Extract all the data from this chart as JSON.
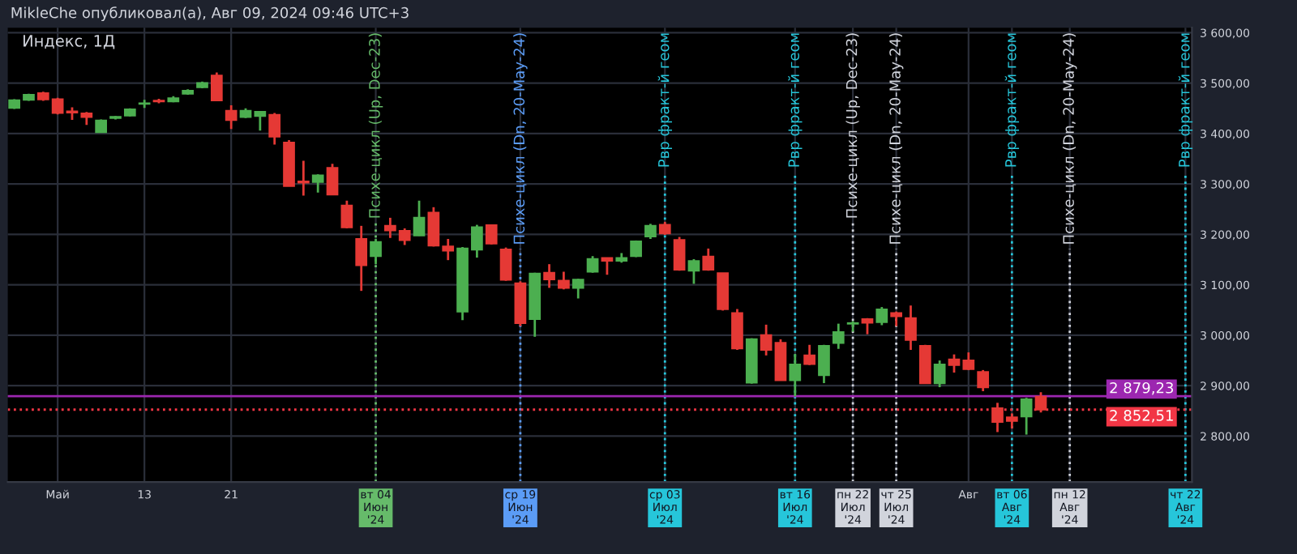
{
  "chart_data": {
    "type": "candlestick",
    "title": "Индекс, 1Д",
    "annotations": [
      "MikleChe опубликовал(а), Авг 09, 2024 09:46 UTC+3"
    ],
    "categories": [
      null,
      null,
      null,
      "Май",
      null,
      null,
      null,
      null,
      null,
      "13",
      null,
      null,
      null,
      null,
      null,
      "21",
      null,
      null,
      null,
      null,
      null,
      null,
      null,
      null,
      null,
      "вт 04 Июн '24",
      null,
      null,
      null,
      null,
      null,
      null,
      null,
      null,
      null,
      "ср 19 Июн '24",
      null,
      null,
      null,
      null,
      null,
      null,
      null,
      null,
      null,
      "ср 03 Июл '24",
      null,
      null,
      null,
      null,
      null,
      null,
      null,
      null,
      "вт 16 Июл '24",
      null,
      null,
      null,
      "пн 22 Июл '24",
      null,
      null,
      "чт 25 Июл '24",
      null,
      null,
      null,
      null,
      "Авг",
      null,
      null,
      "вт 06 Авг '24",
      null,
      null,
      null,
      "пн 12 Авг '24",
      null,
      null,
      null,
      null,
      null,
      null,
      null,
      "чт 22 Авг '24"
    ],
    "ohlc": [
      [
        3451,
        3468,
        3449,
        3466
      ],
      [
        3467,
        3479,
        3465,
        3477
      ],
      [
        3480,
        3483,
        3465,
        3468
      ],
      [
        3468,
        3471,
        3438,
        3441
      ],
      [
        3444,
        3452,
        3427,
        3442
      ],
      [
        3440,
        3443,
        3417,
        3433
      ],
      [
        3403,
        3428,
        3402,
        3426
      ],
      [
        3431,
        3435,
        3428,
        3433
      ],
      [
        3436,
        3450,
        3434,
        3448
      ],
      [
        3459,
        3467,
        3451,
        3460
      ],
      [
        3465,
        3469,
        3460,
        3464
      ],
      [
        3464,
        3474,
        3462,
        3470
      ],
      [
        3479,
        3488,
        3477,
        3485
      ],
      [
        3492,
        3503,
        3490,
        3500
      ],
      [
        3515,
        3521,
        3466,
        3466
      ],
      [
        3445,
        3456,
        3409,
        3427
      ],
      [
        3433,
        3450,
        3431,
        3445
      ],
      [
        3435,
        3445,
        3406,
        3443
      ],
      [
        3437,
        3441,
        3378,
        3394
      ],
      [
        3382,
        3387,
        3296,
        3296
      ],
      [
        3305,
        3346,
        3277,
        3303
      ],
      [
        3304,
        3319,
        3283,
        3317
      ],
      [
        3332,
        3340,
        3279,
        3279
      ],
      [
        3257,
        3267,
        3212,
        3214
      ],
      [
        3191,
        3217,
        3088,
        3139
      ],
      [
        3157,
        3191,
        3141,
        3185
      ],
      [
        3217,
        3233,
        3193,
        3208
      ],
      [
        3207,
        3212,
        3179,
        3189
      ],
      [
        3198,
        3267,
        3197,
        3233
      ],
      [
        3243,
        3254,
        3176,
        3178
      ],
      [
        3176,
        3191,
        3149,
        3168
      ],
      [
        3047,
        3175,
        3030,
        3172
      ],
      [
        3170,
        3219,
        3154,
        3214
      ],
      [
        3218,
        3219,
        3180,
        3182
      ],
      [
        3170,
        3174,
        3108,
        3110
      ],
      [
        3103,
        3107,
        3018,
        3024
      ],
      [
        3032,
        3124,
        2997,
        3122
      ],
      [
        3124,
        3141,
        3094,
        3111
      ],
      [
        3108,
        3126,
        3091,
        3094
      ],
      [
        3094,
        3112,
        3073,
        3110
      ],
      [
        3126,
        3157,
        3124,
        3151
      ],
      [
        3153,
        3154,
        3120,
        3148
      ],
      [
        3148,
        3163,
        3144,
        3153
      ],
      [
        3157,
        3188,
        3155,
        3186
      ],
      [
        3196,
        3221,
        3191,
        3217
      ],
      [
        3219,
        3225,
        3199,
        3202
      ],
      [
        3189,
        3195,
        3128,
        3130
      ],
      [
        3128,
        3151,
        3102,
        3147
      ],
      [
        3156,
        3172,
        3128,
        3130
      ],
      [
        3123,
        3123,
        3049,
        3052
      ],
      [
        3044,
        3052,
        2971,
        2974
      ],
      [
        2906,
        2994,
        2904,
        2992
      ],
      [
        3000,
        3021,
        2960,
        2971
      ],
      [
        2985,
        2992,
        2911,
        2911
      ],
      [
        2911,
        2963,
        2879,
        2942
      ],
      [
        2960,
        2981,
        2941,
        2943
      ],
      [
        2921,
        2981,
        2905,
        2979
      ],
      [
        2985,
        3023,
        2973,
        3006
      ],
      [
        3023,
        3028,
        3007,
        3024
      ],
      [
        3032,
        3034,
        3002,
        3025
      ],
      [
        3026,
        3056,
        3020,
        3051
      ],
      [
        3044,
        3047,
        3018,
        3038
      ],
      [
        3034,
        3059,
        2971,
        2991
      ],
      [
        2979,
        2981,
        2905,
        2905
      ],
      [
        2905,
        2950,
        2897,
        2942
      ],
      [
        2952,
        2962,
        2926,
        2941
      ],
      [
        2950,
        2966,
        2931,
        2933
      ],
      [
        2927,
        2931,
        2889,
        2897
      ],
      [
        2855,
        2866,
        2808,
        2828
      ],
      [
        2837,
        2845,
        2815,
        2830
      ],
      [
        2839,
        2876,
        2803,
        2873
      ],
      [
        2878,
        2887,
        2847,
        2852.51
      ],
      null,
      null,
      null,
      null,
      null,
      null,
      null,
      null,
      null,
      null
    ],
    "colors": [
      "#4caf50",
      "#4caf50",
      "#e53935",
      "#e53935",
      "#e53935",
      "#e53935",
      "#4caf50",
      "#4caf50",
      "#4caf50",
      "#4caf50",
      "#e53935",
      "#4caf50",
      "#4caf50",
      "#4caf50",
      "#e53935",
      "#e53935",
      "#4caf50",
      "#4caf50",
      "#e53935",
      "#e53935",
      "#e53935",
      "#4caf50",
      "#e53935",
      "#e53935",
      "#e53935",
      "#4caf50",
      "#e53935",
      "#e53935",
      "#4caf50",
      "#e53935",
      "#e53935",
      "#4caf50",
      "#4caf50",
      "#e53935",
      "#e53935",
      "#e53935",
      "#4caf50",
      "#e53935",
      "#e53935",
      "#4caf50",
      "#4caf50",
      "#e53935",
      "#4caf50",
      "#4caf50",
      "#4caf50",
      "#e53935",
      "#e53935",
      "#4caf50",
      "#e53935",
      "#e53935",
      "#e53935",
      "#4caf50",
      "#e53935",
      "#e53935",
      "#4caf50",
      "#e53935",
      "#4caf50",
      "#4caf50",
      "#4caf50",
      "#e53935",
      "#4caf50",
      "#e53935",
      "#e53935",
      "#e53935",
      "#4caf50",
      "#e53935",
      "#e53935",
      "#e53935",
      "#e53935",
      "#e53935",
      "#4caf50",
      "#e53935",
      null,
      null,
      null,
      null,
      null,
      null,
      null,
      null,
      null,
      null
    ],
    "ylim": [
      2709,
      3610
    ],
    "yticks": [
      {
        "value": 2800,
        "label": "2 800,00"
      },
      {
        "value": 2900,
        "label": "2 900,00"
      },
      {
        "value": 3000,
        "label": "3 000,00"
      },
      {
        "value": 3100,
        "label": "3 100,00"
      },
      {
        "value": 3200,
        "label": "3 200,00"
      },
      {
        "value": 3300,
        "label": "3 300,00"
      },
      {
        "value": 3400,
        "label": "3 400,00"
      },
      {
        "value": 3500,
        "label": "3 500,00"
      },
      {
        "value": 3600,
        "label": "3 600,00"
      }
    ],
    "ref_lines": [
      {
        "axis": "x",
        "value": "вт 04 Июн '24",
        "label": "Психе-цикл (Up, Dec-23)",
        "color": "#66bb6a",
        "line_style": "dotted"
      },
      {
        "axis": "x",
        "value": "ср 19 Июн '24",
        "label": "Психе-цикл (Dn, 20-May-24)",
        "color": "#5b9cf6",
        "line_style": "dotted"
      },
      {
        "axis": "x",
        "value": "ср 03 Июл '24",
        "label": "Рвр фракт-й геом",
        "color": "#26c6da",
        "line_style": "dotted"
      },
      {
        "axis": "x",
        "value": "вт 16 Июл '24",
        "label": "Рвр фракт-й геом",
        "color": "#26c6da",
        "line_style": "dotted"
      },
      {
        "axis": "x",
        "value": "пн 22 Июл '24",
        "label": "Психе-цикл (Up, Dec-23)",
        "color": "#d1d4dc",
        "line_style": "dotted"
      },
      {
        "axis": "x",
        "value": "чт 25 Июл '24",
        "label": "Психе-цикл (Dn, 20-May-24)",
        "color": "#d1d4dc",
        "line_style": "dotted"
      },
      {
        "axis": "x",
        "value": "вт 06 Авг '24",
        "label": "Рвр фракт-й геом",
        "color": "#26c6da",
        "line_style": "dotted"
      },
      {
        "axis": "x",
        "value": "пн 12 Авг '24",
        "label": "Психе-цикл (Dn, 20-May-24)",
        "color": "#d1d4dc",
        "line_style": "dotted"
      },
      {
        "axis": "x",
        "value": "чт 22 Авг '24",
        "label": "Рвр фракт-й геом",
        "color": "#26c6da",
        "line_style": "dotted"
      },
      {
        "axis": "y",
        "value": 2879.23,
        "label": "2 879,23",
        "color": "#9c27b0",
        "line_style": "solid"
      },
      {
        "axis": "y",
        "value": 2852.51,
        "label": "2 852,51",
        "color": "#f23645",
        "line_style": "dotted"
      }
    ],
    "grid": true
  }
}
